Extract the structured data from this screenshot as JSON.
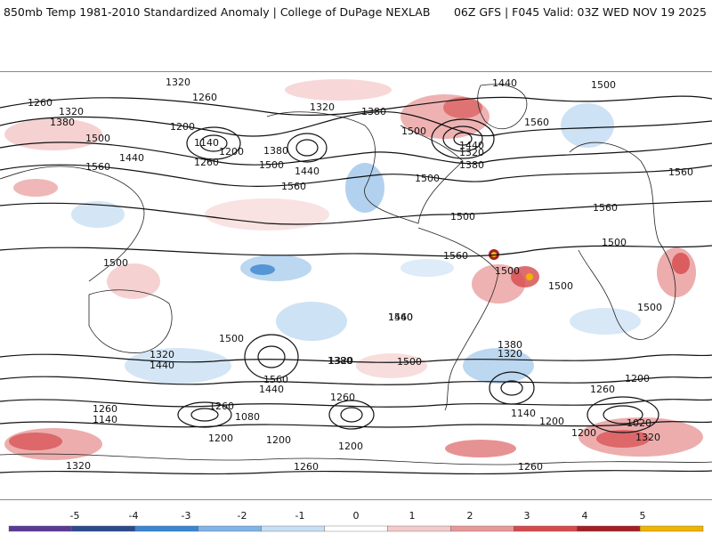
{
  "header": {
    "left_title": "850mb Temp 1981-2010 Standardized Anomaly | College of DuPage NEXLAB",
    "right_title": "06Z GFS | F045 Valid: 03Z WED NOV 19 2025"
  },
  "contour_labels": [
    "1380",
    "1320",
    "1260",
    "1260",
    "1320",
    "1380",
    "1500",
    "1560",
    "1200",
    "1140",
    "1260",
    "1200",
    "1440",
    "1380",
    "1500",
    "1440",
    "1560",
    "1320",
    "1380",
    "1500",
    "1440",
    "1380",
    "1320",
    "1560",
    "1440",
    "1500",
    "1560",
    "1560",
    "1500",
    "1500",
    "1500",
    "1500",
    "1500",
    "1560",
    "1440",
    "1500",
    "1500",
    "1560",
    "1500",
    "1380",
    "1320",
    "1320",
    "1440",
    "1560",
    "1440",
    "1260",
    "1320",
    "1380",
    "1140",
    "1260",
    "1080",
    "1260",
    "1140",
    "1200",
    "1200",
    "1500",
    "1260",
    "1200",
    "1200",
    "1020",
    "1200",
    "1320",
    "1320",
    "1200",
    "1260",
    "1260"
  ],
  "colorbar": {
    "ticks": [
      "-5",
      "-4",
      "-3",
      "-2",
      "-1",
      "0",
      "1",
      "2",
      "3",
      "4",
      "5"
    ],
    "colors": [
      "#5b3a96",
      "#2b4a8c",
      "#3a86d0",
      "#7fb4e6",
      "#c8def3",
      "#ffffff",
      "#f5caca",
      "#e89898",
      "#d6494b",
      "#a51f23",
      "#f0b400"
    ]
  }
}
